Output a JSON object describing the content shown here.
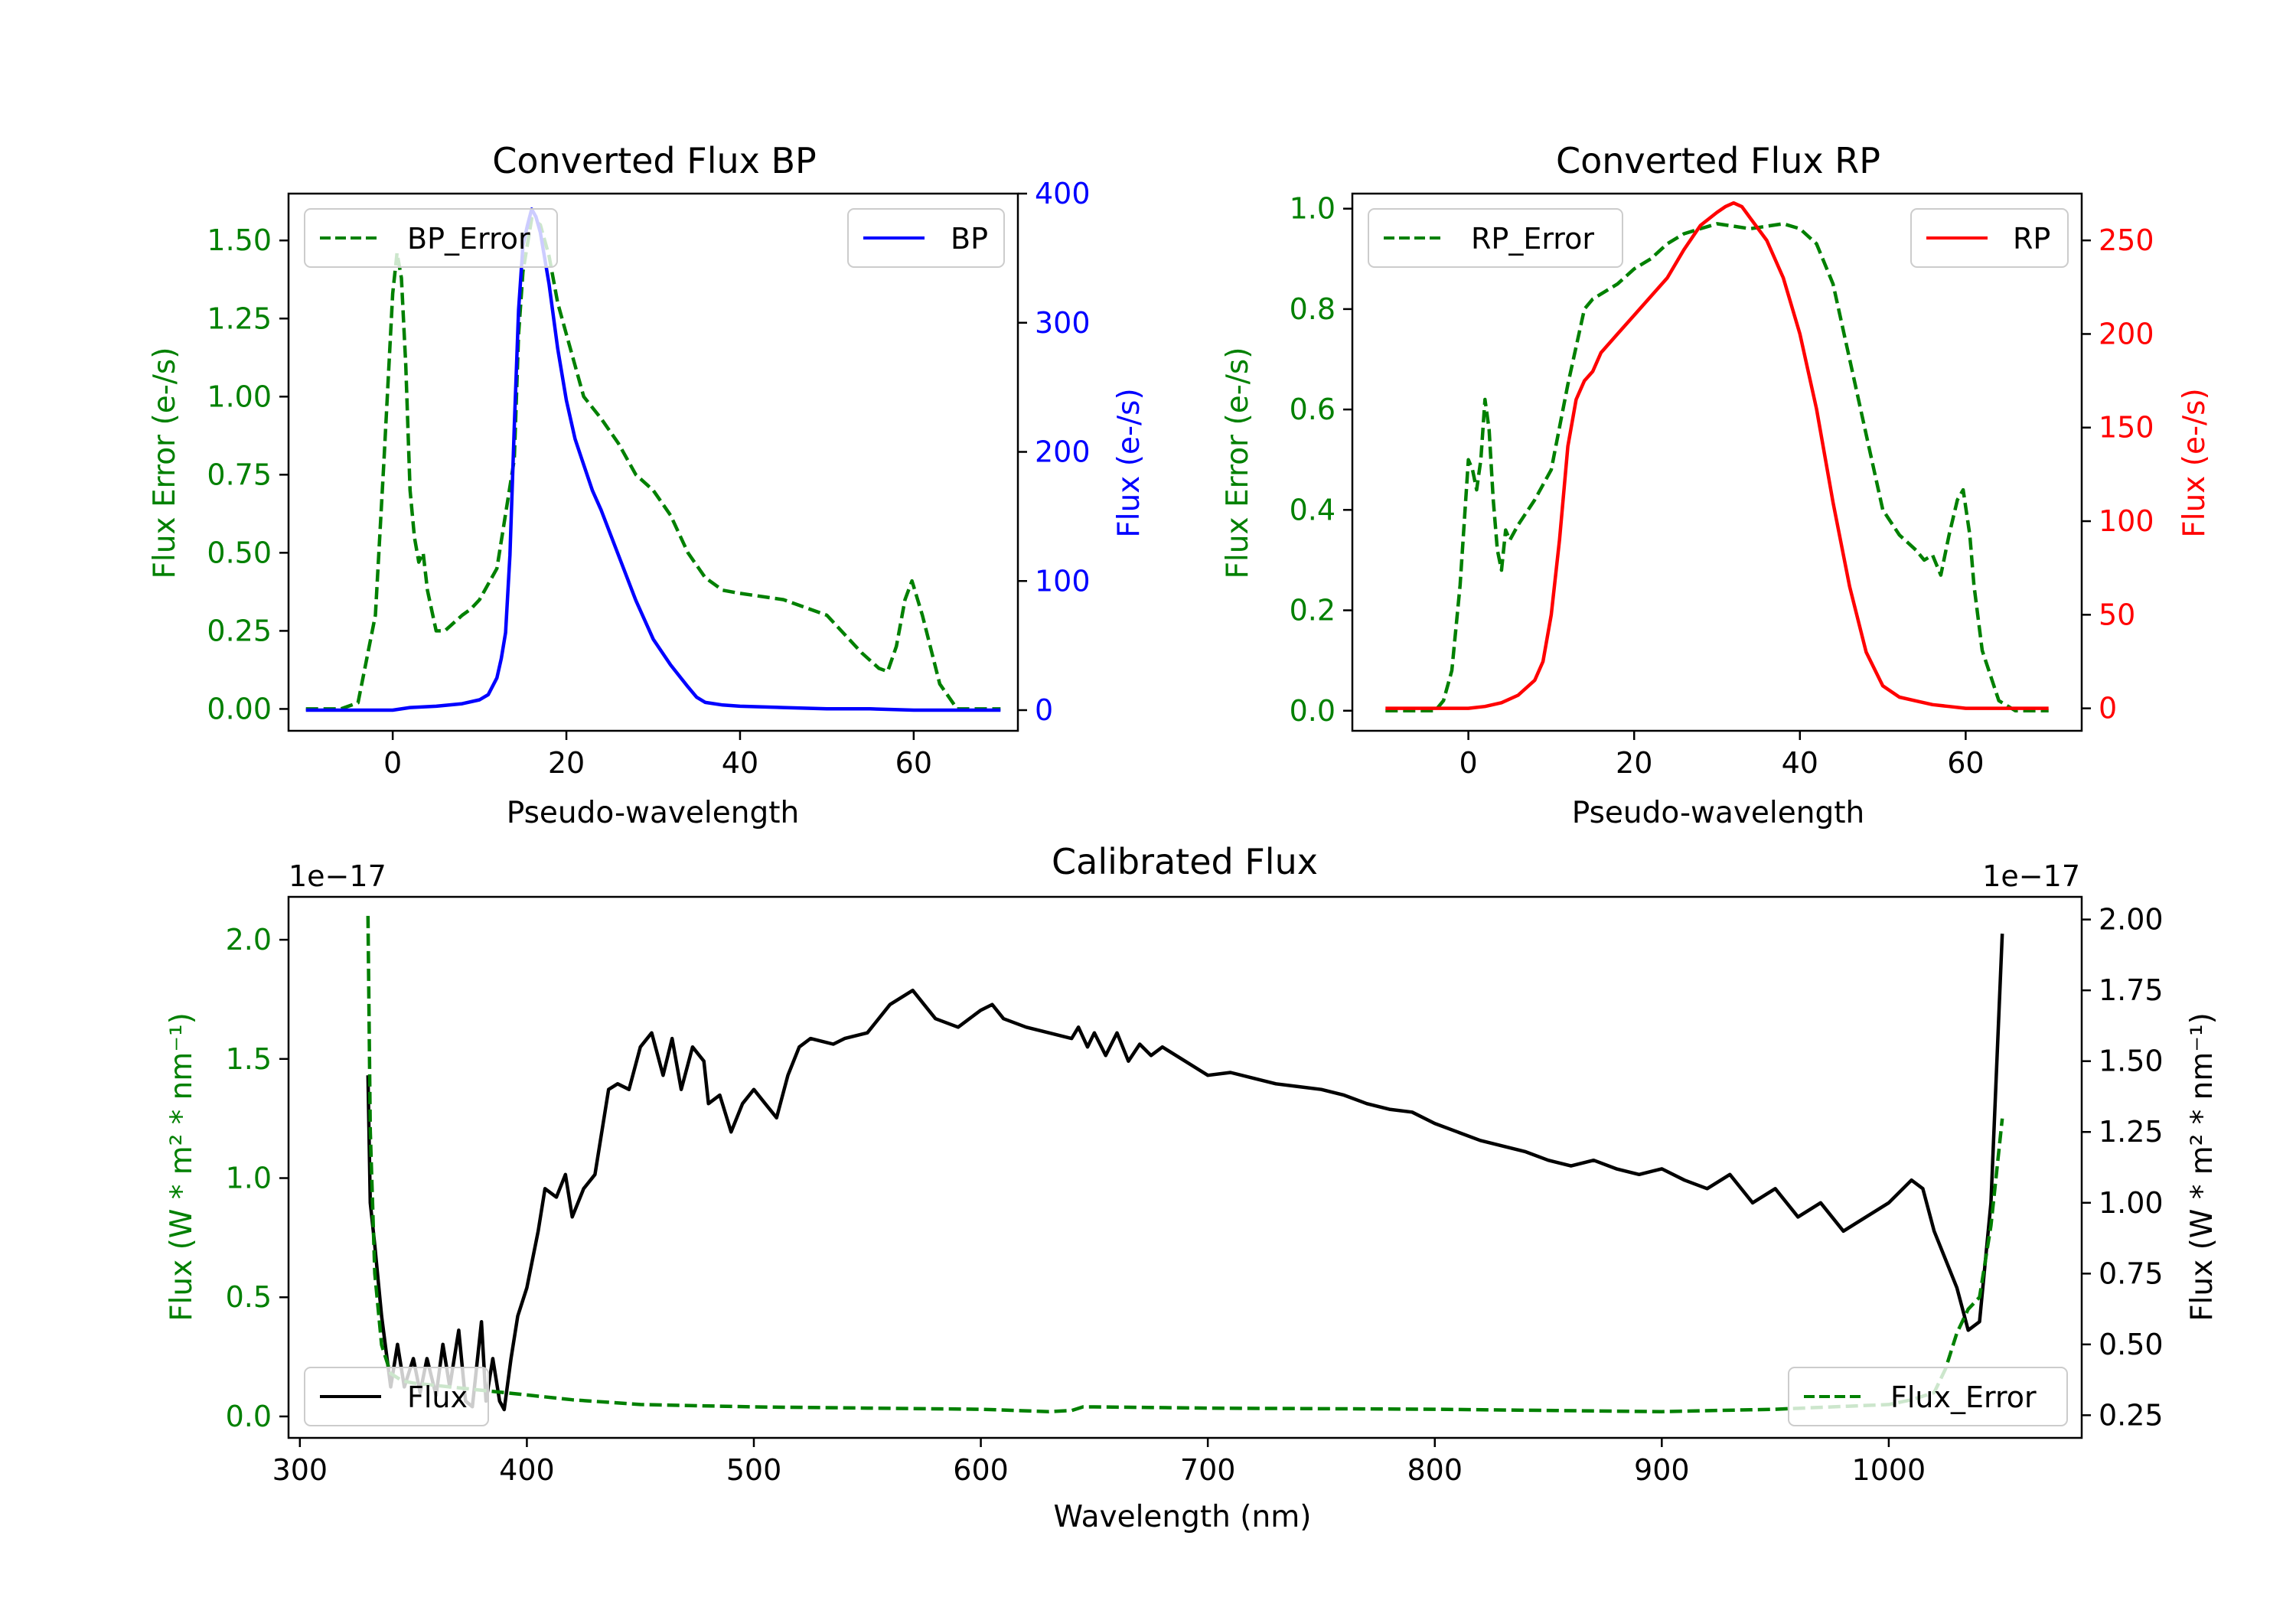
{
  "chart_data": [
    {
      "type": "line",
      "title": "Converted Flux BP",
      "xlabel": "Pseudo-wavelength",
      "ylabel_left": "Flux Error (e-/s)",
      "ylabel_right": "Flux (e-/s)",
      "xlim": [
        -12,
        72
      ],
      "ylim_left": [
        -0.07,
        1.65
      ],
      "ylim_right": [
        -16,
        400
      ],
      "xticks": [
        0,
        20,
        40,
        60
      ],
      "yticks_left": [
        "0.00",
        "0.25",
        "0.50",
        "0.75",
        "1.00",
        "1.25",
        "1.50"
      ],
      "yticks_right": [
        "0",
        "100",
        "200",
        "300",
        "400"
      ],
      "left_color": "#008000",
      "right_color": "#0000ff",
      "legend_left": "BP_Error",
      "legend_right": "BP",
      "series": [
        {
          "name": "BP_Error",
          "axis": "left",
          "style": "dashed",
          "x": [
            -10,
            -6,
            -4,
            -2,
            -1,
            0,
            0.5,
            1,
            1.5,
            2,
            2.5,
            3,
            3.5,
            4,
            5,
            6,
            8,
            9,
            10,
            12,
            14,
            14.5,
            15,
            16,
            17,
            18,
            19,
            20,
            22,
            24,
            26,
            28,
            30,
            32,
            34,
            36,
            38,
            40,
            45,
            50,
            54,
            56,
            57,
            58,
            59,
            59.8,
            61,
            63,
            65,
            68,
            70
          ],
          "values": [
            0,
            0,
            0.02,
            0.3,
            0.8,
            1.33,
            1.46,
            1.38,
            1.1,
            0.7,
            0.55,
            0.47,
            0.5,
            0.38,
            0.25,
            0.25,
            0.3,
            0.32,
            0.35,
            0.45,
            0.8,
            1.2,
            1.4,
            1.57,
            1.55,
            1.45,
            1.3,
            1.2,
            1.0,
            0.93,
            0.85,
            0.75,
            0.7,
            0.62,
            0.5,
            0.42,
            0.38,
            0.37,
            0.35,
            0.3,
            0.18,
            0.13,
            0.12,
            0.2,
            0.35,
            0.41,
            0.3,
            0.08,
            0,
            0,
            0
          ]
        },
        {
          "name": "BP",
          "axis": "right",
          "style": "solid",
          "x": [
            -10,
            -5,
            0,
            2,
            5,
            8,
            10,
            11,
            12,
            12.5,
            13,
            13.5,
            14,
            14.5,
            15,
            15.5,
            16,
            16.5,
            17,
            18,
            19,
            20,
            21,
            22,
            23,
            24,
            26,
            28,
            30,
            32,
            34,
            35,
            36,
            38,
            40,
            45,
            50,
            55,
            60,
            65,
            70
          ],
          "values": [
            0,
            0,
            0,
            2,
            3,
            5,
            8,
            12,
            25,
            40,
            60,
            120,
            220,
            310,
            360,
            375,
            388,
            382,
            370,
            330,
            280,
            240,
            210,
            190,
            170,
            155,
            120,
            85,
            55,
            35,
            18,
            10,
            6,
            4,
            3,
            2,
            1,
            1,
            0,
            0,
            0
          ]
        }
      ]
    },
    {
      "type": "line",
      "title": "Converted Flux RP",
      "xlabel": "Pseudo-wavelength",
      "ylabel_left": "Flux Error (e-/s)",
      "ylabel_right": "Flux (e-/s)",
      "xlim": [
        -14,
        74
      ],
      "ylim_left": [
        -0.04,
        1.03
      ],
      "ylim_right": [
        -12,
        275
      ],
      "xticks": [
        0,
        20,
        40,
        60
      ],
      "yticks_left": [
        "0.0",
        "0.2",
        "0.4",
        "0.6",
        "0.8",
        "1.0"
      ],
      "yticks_right": [
        "0",
        "50",
        "100",
        "150",
        "200",
        "250"
      ],
      "left_color": "#008000",
      "right_color": "#ff0000",
      "legend_left": "RP_Error",
      "legend_right": "RP",
      "series": [
        {
          "name": "RP_Error",
          "axis": "left",
          "style": "dashed",
          "x": [
            -10,
            -4,
            -3,
            -2,
            -1,
            0,
            0.5,
            1,
            1.5,
            2,
            2.5,
            3,
            3.5,
            4,
            4.5,
            5,
            6,
            8,
            10,
            12,
            14,
            15,
            16,
            18,
            20,
            22,
            24,
            26,
            28,
            30,
            32,
            34,
            36,
            38,
            40,
            42,
            44,
            46,
            48,
            50,
            52,
            54,
            55,
            56,
            57,
            58,
            59,
            59.7,
            60.5,
            61,
            62,
            64,
            66,
            70
          ],
          "values": [
            0,
            0,
            0.02,
            0.08,
            0.25,
            0.5,
            0.48,
            0.44,
            0.5,
            0.62,
            0.56,
            0.42,
            0.32,
            0.28,
            0.36,
            0.34,
            0.37,
            0.42,
            0.48,
            0.65,
            0.8,
            0.82,
            0.83,
            0.85,
            0.88,
            0.9,
            0.93,
            0.95,
            0.96,
            0.97,
            0.965,
            0.96,
            0.965,
            0.97,
            0.96,
            0.93,
            0.85,
            0.7,
            0.55,
            0.4,
            0.35,
            0.32,
            0.3,
            0.31,
            0.27,
            0.35,
            0.42,
            0.44,
            0.35,
            0.25,
            0.12,
            0.02,
            0,
            0
          ]
        },
        {
          "name": "RP",
          "axis": "right",
          "style": "solid",
          "x": [
            -10,
            -5,
            0,
            2,
            4,
            6,
            8,
            9,
            10,
            11,
            12,
            13,
            14,
            15,
            16,
            18,
            20,
            22,
            24,
            26,
            28,
            30,
            31,
            32,
            33,
            34,
            36,
            38,
            40,
            42,
            44,
            46,
            48,
            50,
            52,
            54,
            56,
            58,
            60,
            65,
            70
          ],
          "values": [
            0,
            0,
            0,
            1,
            3,
            7,
            15,
            25,
            50,
            90,
            140,
            165,
            175,
            180,
            190,
            200,
            210,
            220,
            230,
            245,
            258,
            265,
            268,
            270,
            268,
            262,
            250,
            230,
            200,
            160,
            110,
            65,
            30,
            12,
            6,
            4,
            2,
            1,
            0,
            0,
            0
          ]
        }
      ]
    },
    {
      "type": "line",
      "title": "Calibrated Flux",
      "xlabel": "Wavelength (nm)",
      "ylabel_left": "Flux (W * m² * nm⁻¹)",
      "ylabel_right": "Flux (W * m² * nm⁻¹)",
      "offset_left": "1e−17",
      "offset_right": "1e−17",
      "xlim": [
        295,
        1085
      ],
      "ylim_left": [
        -0.09,
        2.18
      ],
      "ylim_right": [
        0.17,
        2.08
      ],
      "xticks": [
        "300",
        "400",
        "500",
        "600",
        "700",
        "800",
        "900",
        "1000"
      ],
      "yticks_left": [
        "0.0",
        "0.5",
        "1.0",
        "1.5",
        "2.0"
      ],
      "yticks_right": [
        "0.25",
        "0.50",
        "0.75",
        "1.00",
        "1.25",
        "1.50",
        "1.75",
        "2.00"
      ],
      "left_color": "#008000",
      "right_color": "#000000",
      "legend_left": "Flux",
      "legend_right": "Flux_Error",
      "series": [
        {
          "name": "Flux",
          "axis": "right",
          "style": "solid",
          "x": [
            330,
            331,
            333,
            336,
            340,
            343,
            346,
            350,
            353,
            356,
            360,
            363,
            366,
            370,
            373,
            376,
            380,
            382,
            385,
            388,
            390,
            393,
            396,
            400,
            405,
            408,
            413,
            417,
            420,
            425,
            430,
            436,
            440,
            445,
            450,
            455,
            460,
            464,
            468,
            473,
            478,
            480,
            485,
            490,
            495,
            500,
            505,
            510,
            515,
            520,
            525,
            530,
            535,
            540,
            550,
            560,
            570,
            575,
            580,
            590,
            595,
            600,
            605,
            610,
            620,
            630,
            640,
            643,
            647,
            650,
            655,
            660,
            665,
            670,
            675,
            680,
            690,
            700,
            710,
            720,
            730,
            740,
            750,
            760,
            770,
            780,
            790,
            800,
            810,
            820,
            830,
            840,
            850,
            860,
            870,
            880,
            890,
            900,
            910,
            920,
            930,
            940,
            950,
            960,
            970,
            980,
            990,
            1000,
            1010,
            1015,
            1020,
            1030,
            1035,
            1040,
            1045,
            1050
          ],
          "values": [
            1.45,
            1.0,
            0.85,
            0.6,
            0.35,
            0.5,
            0.35,
            0.45,
            0.33,
            0.45,
            0.32,
            0.5,
            0.35,
            0.55,
            0.3,
            0.28,
            0.58,
            0.3,
            0.45,
            0.3,
            0.27,
            0.45,
            0.6,
            0.7,
            0.9,
            1.05,
            1.02,
            1.1,
            0.95,
            1.05,
            1.1,
            1.4,
            1.42,
            1.4,
            1.55,
            1.6,
            1.45,
            1.58,
            1.4,
            1.55,
            1.5,
            1.35,
            1.38,
            1.25,
            1.35,
            1.4,
            1.35,
            1.3,
            1.45,
            1.55,
            1.58,
            1.57,
            1.56,
            1.58,
            1.6,
            1.7,
            1.75,
            1.7,
            1.65,
            1.62,
            1.65,
            1.68,
            1.7,
            1.65,
            1.62,
            1.6,
            1.58,
            1.62,
            1.55,
            1.6,
            1.52,
            1.6,
            1.5,
            1.56,
            1.52,
            1.55,
            1.5,
            1.45,
            1.46,
            1.44,
            1.42,
            1.41,
            1.4,
            1.38,
            1.35,
            1.33,
            1.32,
            1.28,
            1.25,
            1.22,
            1.2,
            1.18,
            1.15,
            1.13,
            1.15,
            1.12,
            1.1,
            1.12,
            1.08,
            1.05,
            1.1,
            1.0,
            1.05,
            0.95,
            1.0,
            0.9,
            0.95,
            1.0,
            1.08,
            1.05,
            0.9,
            0.7,
            0.55,
            0.58,
            1.0,
            1.95
          ]
        },
        {
          "name": "Flux_Error",
          "axis": "left",
          "style": "dashed",
          "x": [
            330,
            331,
            333,
            336,
            340,
            345,
            350,
            360,
            370,
            380,
            390,
            400,
            420,
            450,
            500,
            550,
            600,
            630,
            640,
            645,
            650,
            700,
            800,
            900,
            950,
            1000,
            1010,
            1020,
            1025,
            1030,
            1035,
            1040,
            1045,
            1050
          ],
          "values": [
            2.1,
            1.2,
            0.6,
            0.3,
            0.18,
            0.15,
            0.14,
            0.13,
            0.12,
            0.11,
            0.1,
            0.09,
            0.07,
            0.05,
            0.04,
            0.035,
            0.03,
            0.02,
            0.025,
            0.04,
            0.04,
            0.035,
            0.03,
            0.02,
            0.03,
            0.05,
            0.07,
            0.1,
            0.2,
            0.35,
            0.45,
            0.5,
            0.8,
            1.25
          ]
        }
      ]
    }
  ]
}
